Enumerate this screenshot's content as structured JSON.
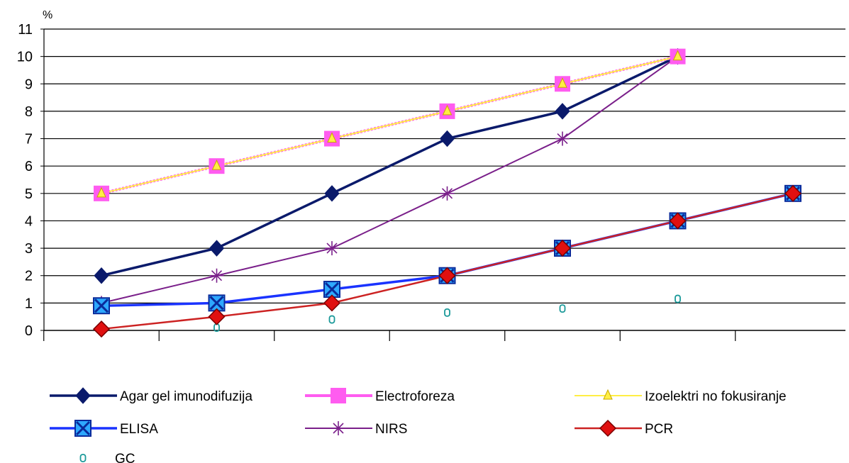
{
  "chart_data": {
    "type": "line",
    "title": "",
    "xlabel": "",
    "ylabel": "%",
    "ylim": [
      0,
      11
    ],
    "yticks": [
      0,
      1,
      2,
      3,
      4,
      5,
      6,
      7,
      8,
      9,
      10,
      11
    ],
    "x_points": 7,
    "grid": true,
    "legend_position": "bottom",
    "series": [
      {
        "name": "Agar gel imunodifuzija",
        "values": [
          2,
          3,
          5,
          7,
          8,
          10,
          null
        ],
        "color": "#0a1a6b",
        "marker": "diamond"
      },
      {
        "name": "Electroforeza",
        "values": [
          5,
          6,
          7,
          8,
          9,
          10,
          null
        ],
        "color": "#ff5cf0",
        "marker": "square"
      },
      {
        "name": "Izoelektri no fokusiranje",
        "values": [
          5,
          6,
          7,
          8,
          9,
          10,
          null
        ],
        "color": "#ffee44",
        "marker": "triangle"
      },
      {
        "name": "ELISA",
        "values": [
          0.9,
          1,
          1.5,
          2,
          3,
          4,
          5
        ],
        "color": "#1a33ff",
        "marker": "xsquare"
      },
      {
        "name": "NIRS",
        "values": [
          1,
          2,
          3,
          5,
          7,
          10,
          null
        ],
        "color": "#7a1f8a",
        "marker": "star"
      },
      {
        "name": "PCR",
        "values": [
          0.05,
          0.5,
          1,
          2,
          3,
          4,
          5
        ],
        "color": "#cc2222",
        "marker": "diamond-red"
      },
      {
        "name": "GC",
        "values": [
          null,
          0.1,
          0.4,
          0.65,
          0.8,
          1.15,
          null
        ],
        "color": "#1a9999",
        "marker": "ring"
      }
    ]
  }
}
